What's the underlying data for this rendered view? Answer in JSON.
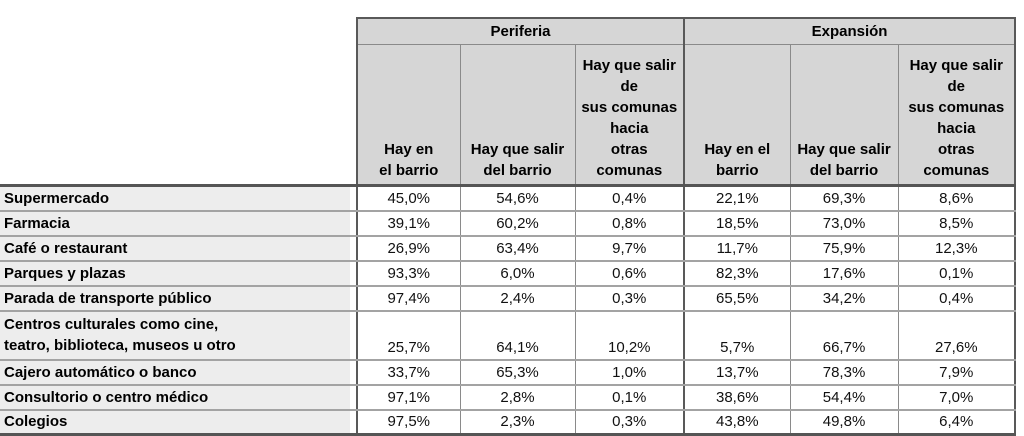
{
  "table": {
    "groups": [
      {
        "label": "Periferia"
      },
      {
        "label": "Expansión"
      }
    ],
    "subheaders": {
      "periferia": [
        "Hay en\nel barrio",
        "Hay que salir\ndel barrio",
        "Hay que salir\nde\nsus comunas\nhacia\notras\ncomunas"
      ],
      "expansion": [
        "Hay en el\nbarrio",
        "Hay que salir\ndel barrio",
        "Hay que salir\nde\nsus comunas\nhacia\notras\ncomunas"
      ]
    },
    "rows": [
      {
        "label": "Supermercado",
        "values": [
          "45,0%",
          "54,6%",
          "0,4%",
          "22,1%",
          "69,3%",
          "8,6%"
        ]
      },
      {
        "label": "Farmacia",
        "values": [
          "39,1%",
          "60,2%",
          "0,8%",
          "18,5%",
          "73,0%",
          "8,5%"
        ]
      },
      {
        "label": "Café o restaurant",
        "values": [
          "26,9%",
          "63,4%",
          "9,7%",
          "11,7%",
          "75,9%",
          "12,3%"
        ]
      },
      {
        "label": "Parques y plazas",
        "values": [
          "93,3%",
          "6,0%",
          "0,6%",
          "82,3%",
          "17,6%",
          "0,1%"
        ]
      },
      {
        "label": "Parada de transporte público",
        "values": [
          "97,4%",
          "2,4%",
          "0,3%",
          "65,5%",
          "34,2%",
          "0,4%"
        ]
      },
      {
        "label": "Centros culturales como cine,\nteatro, biblioteca, museos u otro",
        "values": [
          "25,7%",
          "64,1%",
          "10,2%",
          "5,7%",
          "66,7%",
          "27,6%"
        ]
      },
      {
        "label": "Cajero automático o banco",
        "values": [
          "33,7%",
          "65,3%",
          "1,0%",
          "13,7%",
          "78,3%",
          "7,9%"
        ]
      },
      {
        "label": "Consultorio o centro médico",
        "values": [
          "97,1%",
          "2,8%",
          "0,1%",
          "38,6%",
          "54,4%",
          "7,0%"
        ]
      },
      {
        "label": "Colegios",
        "values": [
          "97,5%",
          "2,3%",
          "0,3%",
          "43,8%",
          "49,8%",
          "6,4%"
        ]
      }
    ],
    "colors": {
      "header_bg": "#d6d6d6",
      "label_bg": "#ededed",
      "border_thin": "#8a8a8a",
      "border_thick": "#595959"
    }
  }
}
